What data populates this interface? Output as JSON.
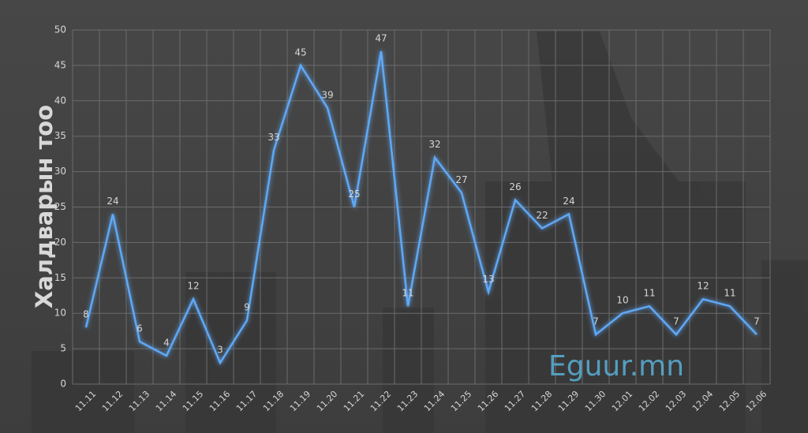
{
  "chart_data": {
    "type": "line",
    "ylabel": "Халдварын тоо",
    "watermark": "Eguur.mn",
    "categories": [
      "11.11",
      "11.12",
      "11.13",
      "11.14",
      "11.15",
      "11.16",
      "11.17",
      "11.18",
      "11.19",
      "11.20",
      "11.21",
      "11.22",
      "11.23",
      "11.24",
      "11.25",
      "11.26",
      "11.27",
      "11.28",
      "11.29",
      "11.30",
      "12.01",
      "12.02",
      "12.03",
      "12.04",
      "12.05",
      "12.06"
    ],
    "values": [
      8,
      24,
      6,
      4,
      12,
      3,
      9,
      33,
      45,
      39,
      25,
      47,
      11,
      32,
      27,
      13,
      26,
      22,
      24,
      7,
      10,
      11,
      7,
      12,
      11,
      7
    ],
    "color": "#5fa8f5",
    "ylim": [
      0,
      50
    ],
    "yticks": [
      0,
      5,
      10,
      15,
      20,
      25,
      30,
      35,
      40,
      45,
      50
    ],
    "grid": true
  }
}
